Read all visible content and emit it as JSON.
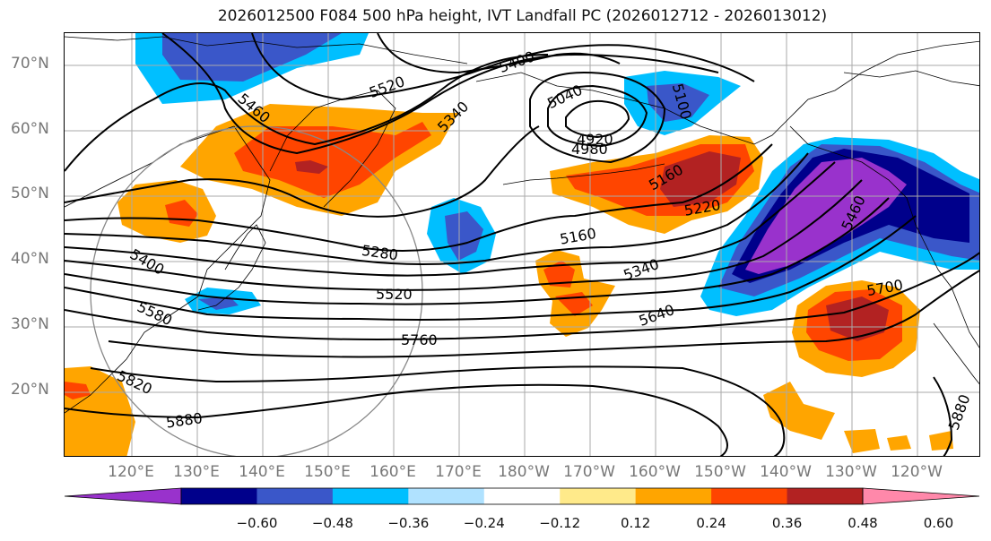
{
  "title": "2026012500 F084 500 hPa height, IVT Landfall PC (2026012712 - 2026013012)",
  "lat_labels": [
    "70°N",
    "60°N",
    "50°N",
    "40°N",
    "30°N",
    "20°N"
  ],
  "lon_labels": [
    "120°E",
    "130°E",
    "140°E",
    "150°E",
    "160°E",
    "170°E",
    "180°W",
    "170°W",
    "160°W",
    "150°W",
    "140°W",
    "130°W",
    "120°W"
  ],
  "contour_labels": [
    "5400",
    "5520",
    "5340",
    "5040",
    "5100",
    "4920",
    "4980",
    "5460",
    "5160",
    "5220",
    "5460",
    "5160",
    "5280",
    "5400",
    "5580",
    "5340",
    "5520",
    "5640",
    "5700",
    "5760",
    "5820",
    "5880",
    "5880"
  ],
  "colorbar": {
    "ticks": [
      "−0.60",
      "−0.48",
      "−0.36",
      "−0.24",
      "−0.12",
      "0.12",
      "0.24",
      "0.36",
      "0.48",
      "0.60"
    ],
    "colors": [
      "#9932CC",
      "#00008B",
      "#3A57C9",
      "#00BFFF",
      "#B0E2FF",
      "#FFFFFF",
      "#FFEA8A",
      "#FFA500",
      "#FF4500",
      "#B22222",
      "#FF88AA"
    ]
  }
}
